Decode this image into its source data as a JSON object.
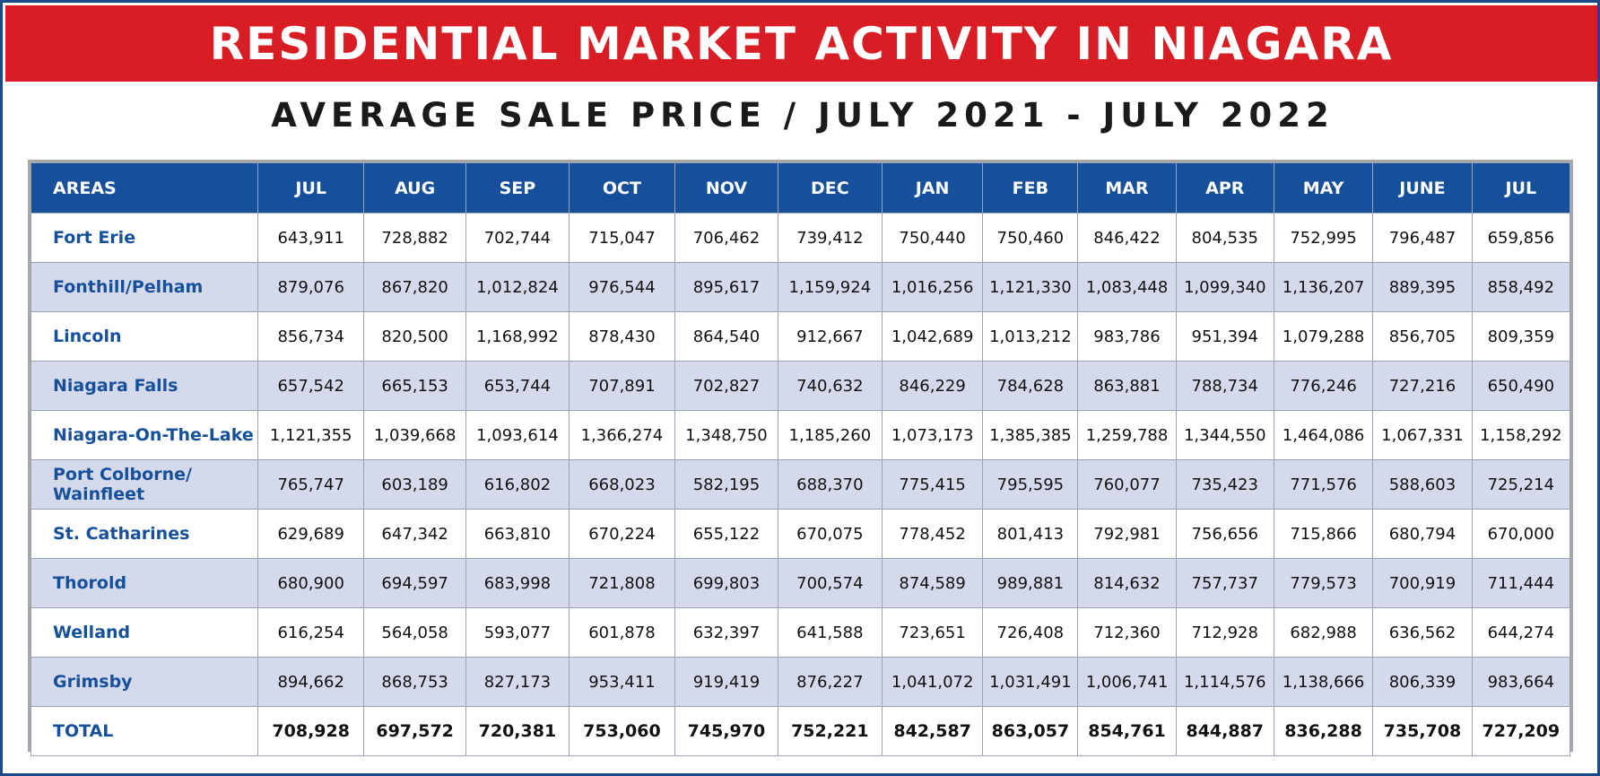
{
  "banner": {
    "title": "RESIDENTIAL MARKET ACTIVITY IN NIAGARA"
  },
  "subtitle": "AVERAGE SALE PRICE / JULY 2021 - JULY 2022",
  "colors": {
    "banner": "#d81d24",
    "header": "#17509a",
    "stripe": "#d4daec",
    "area_text": "#17509a"
  },
  "chart_data": {
    "type": "table",
    "title": "RESIDENTIAL MARKET ACTIVITY IN NIAGARA",
    "subtitle": "AVERAGE SALE PRICE / JULY 2021 - JULY 2022",
    "header": [
      "AREAS",
      "JUL",
      "AUG",
      "SEP",
      "OCT",
      "NOV",
      "DEC",
      "JAN",
      "FEB",
      "MAR",
      "APR",
      "MAY",
      "JUNE",
      "JUL"
    ],
    "rows": [
      {
        "area": "Fort Erie",
        "values": [
          "643,911",
          "728,882",
          "702,744",
          "715,047",
          "706,462",
          "739,412",
          "750,440",
          "750,460",
          "846,422",
          "804,535",
          "752,995",
          "796,487",
          "659,856"
        ]
      },
      {
        "area": "Fonthill/Pelham",
        "values": [
          "879,076",
          "867,820",
          "1,012,824",
          "976,544",
          "895,617",
          "1,159,924",
          "1,016,256",
          "1,121,330",
          "1,083,448",
          "1,099,340",
          "1,136,207",
          "889,395",
          "858,492"
        ]
      },
      {
        "area": "Lincoln",
        "values": [
          "856,734",
          "820,500",
          "1,168,992",
          "878,430",
          "864,540",
          "912,667",
          "1,042,689",
          "1,013,212",
          "983,786",
          "951,394",
          "1,079,288",
          "856,705",
          "809,359"
        ]
      },
      {
        "area": "Niagara Falls",
        "values": [
          "657,542",
          "665,153",
          "653,744",
          "707,891",
          "702,827",
          "740,632",
          "846,229",
          "784,628",
          "863,881",
          "788,734",
          "776,246",
          "727,216",
          "650,490"
        ]
      },
      {
        "area": "Niagara-On-The-Lake",
        "values": [
          "1,121,355",
          "1,039,668",
          "1,093,614",
          "1,366,274",
          "1,348,750",
          "1,185,260",
          "1,073,173",
          "1,385,385",
          "1,259,788",
          "1,344,550",
          "1,464,086",
          "1,067,331",
          "1,158,292"
        ]
      },
      {
        "area": "Port Colborne/ Wainfleet",
        "values": [
          "765,747",
          "603,189",
          "616,802",
          "668,023",
          "582,195",
          "688,370",
          "775,415",
          "795,595",
          "760,077",
          "735,423",
          "771,576",
          "588,603",
          "725,214"
        ]
      },
      {
        "area": "St. Catharines",
        "values": [
          "629,689",
          "647,342",
          "663,810",
          "670,224",
          "655,122",
          "670,075",
          "778,452",
          "801,413",
          "792,981",
          "756,656",
          "715,866",
          "680,794",
          "670,000"
        ]
      },
      {
        "area": "Thorold",
        "values": [
          "680,900",
          "694,597",
          "683,998",
          "721,808",
          "699,803",
          "700,574",
          "874,589",
          "989,881",
          "814,632",
          "757,737",
          "779,573",
          "700,919",
          "711,444"
        ]
      },
      {
        "area": "Welland",
        "values": [
          "616,254",
          "564,058",
          "593,077",
          "601,878",
          "632,397",
          "641,588",
          "723,651",
          "726,408",
          "712,360",
          "712,928",
          "682,988",
          "636,562",
          "644,274"
        ]
      },
      {
        "area": "Grimsby",
        "values": [
          "894,662",
          "868,753",
          "827,173",
          "953,411",
          "919,419",
          "876,227",
          "1,041,072",
          "1,031,491",
          "1,006,741",
          "1,114,576",
          "1,138,666",
          "806,339",
          "983,664"
        ]
      }
    ],
    "total": {
      "area": "TOTAL",
      "values": [
        "708,928",
        "697,572",
        "720,381",
        "753,060",
        "745,970",
        "752,221",
        "842,587",
        "863,057",
        "854,761",
        "844,887",
        "836,288",
        "735,708",
        "727,209"
      ]
    }
  }
}
